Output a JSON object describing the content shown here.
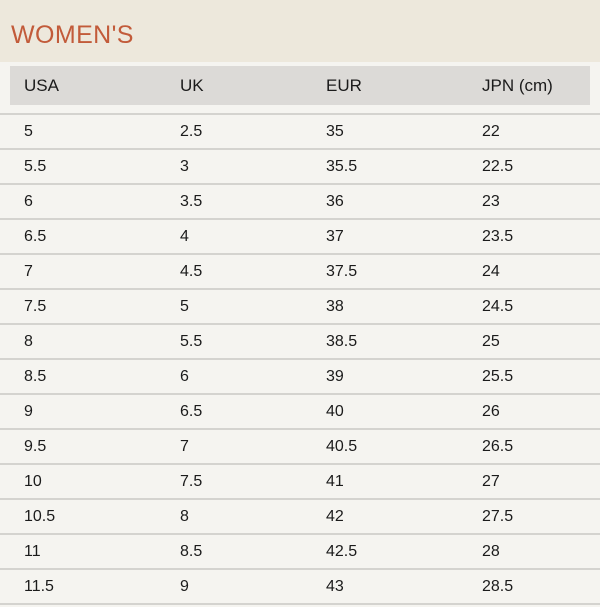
{
  "header": {
    "title": "WOMEN'S"
  },
  "chart_data": {
    "type": "table",
    "title": "WOMEN'S",
    "columns": [
      "USA",
      "UK",
      "EUR",
      "JPN (cm)"
    ],
    "rows": [
      [
        "5",
        "2.5",
        "35",
        "22"
      ],
      [
        "5.5",
        "3",
        "35.5",
        "22.5"
      ],
      [
        "6",
        "3.5",
        "36",
        "23"
      ],
      [
        "6.5",
        "4",
        "37",
        "23.5"
      ],
      [
        "7",
        "4.5",
        "37.5",
        "24"
      ],
      [
        "7.5",
        "5",
        "38",
        "24.5"
      ],
      [
        "8",
        "5.5",
        "38.5",
        "25"
      ],
      [
        "8.5",
        "6",
        "39",
        "25.5"
      ],
      [
        "9",
        "6.5",
        "40",
        "26"
      ],
      [
        "9.5",
        "7",
        "40.5",
        "26.5"
      ],
      [
        "10",
        "7.5",
        "41",
        "27"
      ],
      [
        "10.5",
        "8",
        "42",
        "27.5"
      ],
      [
        "11",
        "8.5",
        "42.5",
        "28"
      ],
      [
        "11.5",
        "9",
        "43",
        "28.5"
      ]
    ]
  },
  "colors": {
    "title_text": "#c25b3a",
    "banner_bg": "#ede8dc",
    "page_bg": "#f5f4f0",
    "header_bg": "#dcdad7",
    "row_divider": "#d4d3cf",
    "cell_text": "#1b1b1b"
  }
}
